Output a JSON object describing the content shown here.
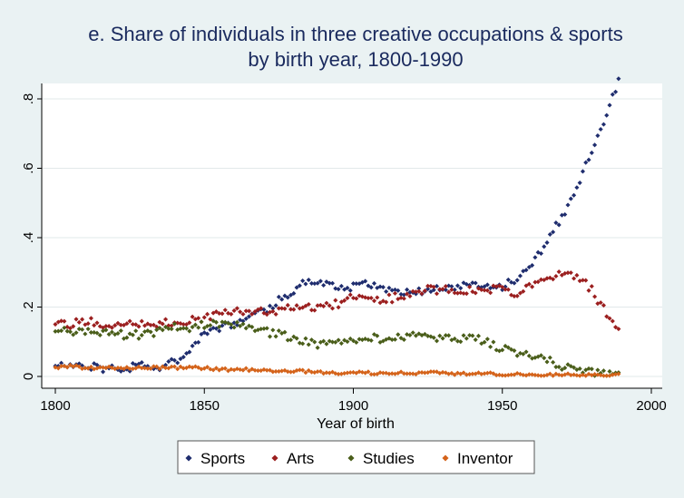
{
  "chart_data": {
    "type": "scatter",
    "title": "e. Share of individuals in three creative occupations & sports",
    "subtitle": "by birth year, 1800-1990",
    "xlabel": "Year of birth",
    "ylabel": "",
    "xlim": [
      1798,
      2000
    ],
    "ylim": [
      0,
      0.86
    ],
    "x_ticks": [
      1800,
      1850,
      1900,
      1950,
      2000
    ],
    "x_tick_labels": [
      "1800",
      "1850",
      "1900",
      "1950",
      "2000"
    ],
    "y_ticks": [
      0,
      0.2,
      0.4,
      0.6,
      0.8
    ],
    "y_tick_labels": [
      "0",
      ".2",
      ".4",
      ".6",
      ".8"
    ],
    "grid": "horizontal",
    "legend_position": "bottom",
    "background_color": "#eaf2f3",
    "plot_background_color": "#ffffff",
    "series": [
      {
        "name": "Sports",
        "color": "#1f2d6e",
        "points": [
          [
            1800,
            0.03
          ],
          [
            1805,
            0.03
          ],
          [
            1810,
            0.03
          ],
          [
            1815,
            0.025
          ],
          [
            1820,
            0.025
          ],
          [
            1825,
            0.025
          ],
          [
            1830,
            0.03
          ],
          [
            1835,
            0.03
          ],
          [
            1840,
            0.04
          ],
          [
            1843,
            0.06
          ],
          [
            1846,
            0.09
          ],
          [
            1850,
            0.12
          ],
          [
            1855,
            0.14
          ],
          [
            1860,
            0.15
          ],
          [
            1865,
            0.17
          ],
          [
            1870,
            0.19
          ],
          [
            1875,
            0.22
          ],
          [
            1880,
            0.25
          ],
          [
            1885,
            0.28
          ],
          [
            1890,
            0.27
          ],
          [
            1895,
            0.25
          ],
          [
            1900,
            0.26
          ],
          [
            1905,
            0.27
          ],
          [
            1910,
            0.25
          ],
          [
            1915,
            0.24
          ],
          [
            1920,
            0.24
          ],
          [
            1925,
            0.25
          ],
          [
            1930,
            0.25
          ],
          [
            1935,
            0.26
          ],
          [
            1940,
            0.26
          ],
          [
            1945,
            0.26
          ],
          [
            1950,
            0.26
          ],
          [
            1955,
            0.28
          ],
          [
            1960,
            0.33
          ],
          [
            1965,
            0.39
          ],
          [
            1970,
            0.46
          ],
          [
            1975,
            0.55
          ],
          [
            1980,
            0.65
          ],
          [
            1985,
            0.76
          ],
          [
            1989,
            0.85
          ]
        ]
      },
      {
        "name": "Arts",
        "color": "#9b1f1f",
        "points": [
          [
            1800,
            0.16
          ],
          [
            1805,
            0.15
          ],
          [
            1810,
            0.16
          ],
          [
            1815,
            0.15
          ],
          [
            1820,
            0.15
          ],
          [
            1825,
            0.15
          ],
          [
            1830,
            0.15
          ],
          [
            1835,
            0.15
          ],
          [
            1840,
            0.16
          ],
          [
            1845,
            0.16
          ],
          [
            1850,
            0.17
          ],
          [
            1855,
            0.18
          ],
          [
            1860,
            0.19
          ],
          [
            1865,
            0.19
          ],
          [
            1870,
            0.19
          ],
          [
            1875,
            0.19
          ],
          [
            1880,
            0.2
          ],
          [
            1885,
            0.2
          ],
          [
            1890,
            0.2
          ],
          [
            1895,
            0.21
          ],
          [
            1900,
            0.23
          ],
          [
            1905,
            0.23
          ],
          [
            1910,
            0.22
          ],
          [
            1915,
            0.23
          ],
          [
            1920,
            0.24
          ],
          [
            1925,
            0.25
          ],
          [
            1930,
            0.25
          ],
          [
            1935,
            0.25
          ],
          [
            1940,
            0.25
          ],
          [
            1945,
            0.25
          ],
          [
            1950,
            0.25
          ],
          [
            1955,
            0.24
          ],
          [
            1960,
            0.26
          ],
          [
            1965,
            0.28
          ],
          [
            1970,
            0.3
          ],
          [
            1975,
            0.29
          ],
          [
            1980,
            0.25
          ],
          [
            1985,
            0.18
          ],
          [
            1989,
            0.14
          ]
        ]
      },
      {
        "name": "Studies",
        "color": "#4a5e1a",
        "points": [
          [
            1800,
            0.13
          ],
          [
            1805,
            0.13
          ],
          [
            1810,
            0.13
          ],
          [
            1815,
            0.13
          ],
          [
            1820,
            0.12
          ],
          [
            1825,
            0.12
          ],
          [
            1830,
            0.12
          ],
          [
            1835,
            0.13
          ],
          [
            1840,
            0.14
          ],
          [
            1845,
            0.14
          ],
          [
            1850,
            0.15
          ],
          [
            1855,
            0.15
          ],
          [
            1860,
            0.15
          ],
          [
            1865,
            0.14
          ],
          [
            1870,
            0.13
          ],
          [
            1875,
            0.12
          ],
          [
            1880,
            0.11
          ],
          [
            1885,
            0.1
          ],
          [
            1890,
            0.09
          ],
          [
            1895,
            0.1
          ],
          [
            1900,
            0.11
          ],
          [
            1905,
            0.11
          ],
          [
            1910,
            0.11
          ],
          [
            1915,
            0.11
          ],
          [
            1920,
            0.12
          ],
          [
            1925,
            0.12
          ],
          [
            1930,
            0.11
          ],
          [
            1935,
            0.11
          ],
          [
            1940,
            0.11
          ],
          [
            1945,
            0.1
          ],
          [
            1950,
            0.08
          ],
          [
            1955,
            0.07
          ],
          [
            1960,
            0.06
          ],
          [
            1965,
            0.05
          ],
          [
            1970,
            0.03
          ],
          [
            1975,
            0.02
          ],
          [
            1980,
            0.01
          ],
          [
            1985,
            0.005
          ],
          [
            1989,
            0.005
          ]
        ]
      },
      {
        "name": "Inventor",
        "color": "#d4631a",
        "points": [
          [
            1800,
            0.025
          ],
          [
            1805,
            0.03
          ],
          [
            1810,
            0.025
          ],
          [
            1815,
            0.025
          ],
          [
            1820,
            0.025
          ],
          [
            1825,
            0.025
          ],
          [
            1830,
            0.025
          ],
          [
            1835,
            0.025
          ],
          [
            1840,
            0.025
          ],
          [
            1845,
            0.025
          ],
          [
            1850,
            0.025
          ],
          [
            1855,
            0.02
          ],
          [
            1860,
            0.02
          ],
          [
            1865,
            0.02
          ],
          [
            1870,
            0.02
          ],
          [
            1875,
            0.015
          ],
          [
            1880,
            0.015
          ],
          [
            1885,
            0.015
          ],
          [
            1890,
            0.01
          ],
          [
            1895,
            0.01
          ],
          [
            1900,
            0.01
          ],
          [
            1905,
            0.01
          ],
          [
            1910,
            0.01
          ],
          [
            1915,
            0.01
          ],
          [
            1920,
            0.01
          ],
          [
            1925,
            0.01
          ],
          [
            1930,
            0.01
          ],
          [
            1935,
            0.008
          ],
          [
            1940,
            0.008
          ],
          [
            1945,
            0.008
          ],
          [
            1950,
            0.006
          ],
          [
            1955,
            0.006
          ],
          [
            1960,
            0.005
          ],
          [
            1965,
            0.005
          ],
          [
            1970,
            0.005
          ],
          [
            1975,
            0.005
          ],
          [
            1980,
            0.004
          ],
          [
            1985,
            0.004
          ],
          [
            1989,
            0.004
          ]
        ]
      }
    ]
  }
}
